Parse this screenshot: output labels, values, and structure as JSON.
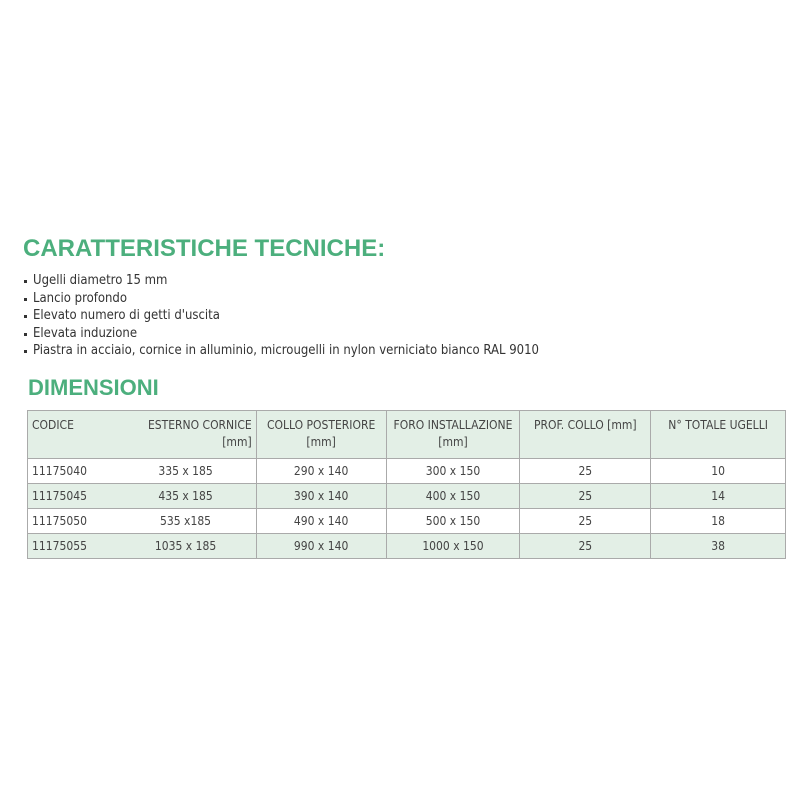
{
  "title": "CARATTERISTICHE TECNICHE:",
  "features": [
    "Ugelli diametro 15 mm",
    "Lancio profondo",
    "Elevato numero di getti d'uscita",
    "Elevata induzione",
    "Piastra in acciaio, cornice in alluminio, microugelli in nylon verniciato bianco RAL 9010"
  ],
  "dimensions_title": "DIMENSIONI",
  "table": {
    "headers": [
      "CODICE",
      "ESTERNO CORNICE [mm]",
      "COLLO POSTERIORE [mm]",
      "FORO INSTALLAZIONE [mm]",
      "PROF. COLLO [mm]",
      "N° TOTALE UGELLI"
    ],
    "rows": [
      [
        "11175040",
        "335 x 185",
        "290 x 140",
        "300 x 150",
        "25",
        "10"
      ],
      [
        "11175045",
        "435 x 185",
        "390 x 140",
        "400 x 150",
        "25",
        "14"
      ],
      [
        "11175050",
        "535 x185",
        "490 x 140",
        "500 x 150",
        "25",
        "18"
      ],
      [
        "11175055",
        "1035 x 185",
        "990 x 140",
        "1000 x 150",
        "25",
        "38"
      ]
    ]
  },
  "colors": {
    "accent": "#4caf7d",
    "row_tint": "#e3efe6"
  }
}
